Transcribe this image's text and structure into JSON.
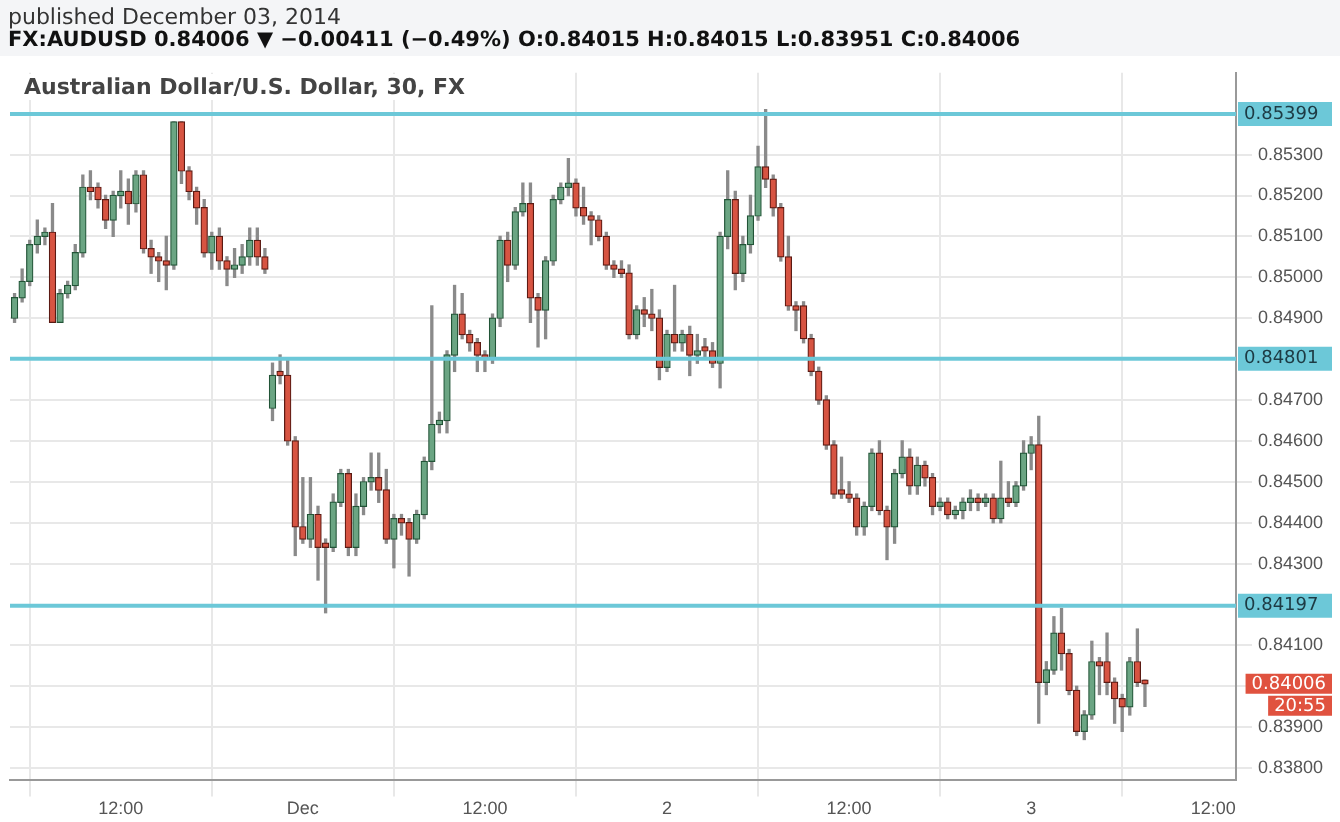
{
  "chart_data": {
    "type": "candlestick",
    "title": "Australian Dollar/U.S. Dollar, 30, FX",
    "subtitle": "FX:AUDUSD 0.84006 ▼ −0.00411 (−0.49%) O:0.84015 H:0.84015 L:0.83951 C:0.84006",
    "annotations": [
      "published December 03, 2014",
      "0.84006",
      "20:55"
    ],
    "x": [
      "2014-11-30T05:00",
      "2014-11-30T05:30",
      "2014-11-30T06:00",
      "2014-11-30T06:30",
      "2014-11-30T07:00",
      "2014-11-30T07:30",
      "2014-11-30T08:00",
      "2014-11-30T08:30",
      "2014-11-30T09:00",
      "2014-11-30T09:30",
      "2014-11-30T10:00",
      "2014-11-30T10:30",
      "2014-11-30T11:00",
      "2014-11-30T11:30",
      "2014-11-30T12:00",
      "2014-11-30T12:30",
      "2014-11-30T13:00",
      "2014-11-30T13:30",
      "2014-11-30T14:00",
      "2014-11-30T14:30",
      "2014-11-30T15:00",
      "2014-11-30T15:30",
      "2014-11-30T16:00",
      "2014-11-30T16:30",
      "2014-11-30T17:00",
      "2014-11-30T17:30",
      "2014-11-30T18:00",
      "2014-11-30T18:30",
      "2014-11-30T19:00",
      "2014-11-30T19:30",
      "2014-11-30T20:00",
      "2014-11-30T20:30",
      "2014-11-30T21:00",
      "2014-11-30T21:30",
      "2014-11-30T22:00",
      "2014-11-30T22:30",
      "2014-11-30T23:00",
      "2014-11-30T23:30",
      "2014-12-01T00:00",
      "2014-12-01T00:30",
      "2014-12-01T01:00",
      "2014-12-01T01:30",
      "2014-12-01T02:00",
      "2014-12-01T02:30",
      "2014-12-01T03:00",
      "2014-12-01T03:30",
      "2014-12-01T04:00",
      "2014-12-01T04:30",
      "2014-12-01T05:00",
      "2014-12-01T05:30",
      "2014-12-01T06:00",
      "2014-12-01T06:30",
      "2014-12-01T07:00",
      "2014-12-01T07:30",
      "2014-12-01T08:00",
      "2014-12-01T08:30",
      "2014-12-01T09:00",
      "2014-12-01T09:30",
      "2014-12-01T10:00",
      "2014-12-01T10:30",
      "2014-12-01T11:00",
      "2014-12-01T11:30",
      "2014-12-01T12:00",
      "2014-12-01T12:30",
      "2014-12-01T13:00",
      "2014-12-01T13:30",
      "2014-12-01T14:00",
      "2014-12-01T14:30",
      "2014-12-01T15:00",
      "2014-12-01T15:30",
      "2014-12-01T16:00",
      "2014-12-01T16:30",
      "2014-12-01T17:00",
      "2014-12-01T17:30",
      "2014-12-01T18:00",
      "2014-12-01T18:30",
      "2014-12-01T19:00",
      "2014-12-01T19:30",
      "2014-12-01T20:00",
      "2014-12-01T20:30",
      "2014-12-01T21:00",
      "2014-12-01T21:30",
      "2014-12-01T22:00",
      "2014-12-01T22:30",
      "2014-12-01T23:00",
      "2014-12-01T23:30",
      "2014-12-02T00:00",
      "2014-12-02T00:30",
      "2014-12-02T01:00",
      "2014-12-02T01:30",
      "2014-12-02T02:00",
      "2014-12-02T02:30",
      "2014-12-02T03:00",
      "2014-12-02T03:30",
      "2014-12-02T04:00",
      "2014-12-02T04:30",
      "2014-12-02T05:00",
      "2014-12-02T05:30",
      "2014-12-02T06:00",
      "2014-12-02T06:30",
      "2014-12-02T07:00",
      "2014-12-02T07:30",
      "2014-12-02T08:00",
      "2014-12-02T08:30",
      "2014-12-02T09:00",
      "2014-12-02T09:30",
      "2014-12-02T10:00",
      "2014-12-02T10:30",
      "2014-12-02T11:00",
      "2014-12-02T11:30",
      "2014-12-02T12:00",
      "2014-12-02T12:30",
      "2014-12-02T13:00",
      "2014-12-02T13:30",
      "2014-12-02T14:00",
      "2014-12-02T14:30",
      "2014-12-02T15:00",
      "2014-12-02T15:30",
      "2014-12-02T16:00",
      "2014-12-02T16:30",
      "2014-12-02T17:00",
      "2014-12-02T17:30",
      "2014-12-02T18:00",
      "2014-12-02T18:30",
      "2014-12-02T19:00",
      "2014-12-02T19:30",
      "2014-12-02T20:00",
      "2014-12-02T20:30",
      "2014-12-02T21:00",
      "2014-12-02T21:30",
      "2014-12-02T22:00",
      "2014-12-02T22:30",
      "2014-12-02T23:00",
      "2014-12-02T23:30",
      "2014-12-03T00:00",
      "2014-12-03T00:30",
      "2014-12-03T01:00",
      "2014-12-03T01:30",
      "2014-12-03T02:00",
      "2014-12-03T02:30",
      "2014-12-03T03:00",
      "2014-12-03T03:30",
      "2014-12-03T04:00",
      "2014-12-03T04:30",
      "2014-12-03T05:00",
      "2014-12-03T05:30",
      "2014-12-03T06:00",
      "2014-12-03T06:30",
      "2014-12-03T07:00",
      "2014-12-03T07:30"
    ],
    "ohlc": [
      [
        0.849,
        0.8496,
        0.8489,
        0.8495
      ],
      [
        0.8495,
        0.8502,
        0.8494,
        0.8499
      ],
      [
        0.8499,
        0.8509,
        0.8498,
        0.8508
      ],
      [
        0.8508,
        0.8514,
        0.8506,
        0.851
      ],
      [
        0.851,
        0.8512,
        0.8508,
        0.8511
      ],
      [
        0.8511,
        0.8518,
        0.8489,
        0.8489
      ],
      [
        0.8489,
        0.8497,
        0.8489,
        0.8496
      ],
      [
        0.8496,
        0.8499,
        0.8495,
        0.8498
      ],
      [
        0.8498,
        0.8508,
        0.8497,
        0.8506
      ],
      [
        0.8506,
        0.8525,
        0.8505,
        0.8522
      ],
      [
        0.8522,
        0.8526,
        0.8519,
        0.8521
      ],
      [
        0.8522,
        0.8523,
        0.8517,
        0.8519
      ],
      [
        0.8519,
        0.852,
        0.8512,
        0.8514
      ],
      [
        0.8514,
        0.8521,
        0.851,
        0.852
      ],
      [
        0.852,
        0.8526,
        0.8517,
        0.8521
      ],
      [
        0.8521,
        0.8524,
        0.8513,
        0.8518
      ],
      [
        0.8518,
        0.8526,
        0.8516,
        0.8525
      ],
      [
        0.8525,
        0.8526,
        0.8506,
        0.8507
      ],
      [
        0.8507,
        0.8509,
        0.8501,
        0.8505
      ],
      [
        0.8505,
        0.8506,
        0.8499,
        0.8504
      ],
      [
        0.8504,
        0.851,
        0.8497,
        0.8503
      ],
      [
        0.8503,
        0.8538,
        0.8502,
        0.8538
      ],
      [
        0.8538,
        0.8538,
        0.8523,
        0.8526
      ],
      [
        0.8526,
        0.8527,
        0.8519,
        0.8521
      ],
      [
        0.8521,
        0.8522,
        0.8513,
        0.8517
      ],
      [
        0.8517,
        0.8519,
        0.8505,
        0.8506
      ],
      [
        0.8506,
        0.8511,
        0.8502,
        0.851
      ],
      [
        0.851,
        0.8512,
        0.8502,
        0.8504
      ],
      [
        0.8504,
        0.8505,
        0.8498,
        0.8502
      ],
      [
        0.8502,
        0.8507,
        0.85,
        0.8503
      ],
      [
        0.8503,
        0.8508,
        0.8501,
        0.8505
      ],
      [
        0.8505,
        0.8512,
        0.8503,
        0.8509
      ],
      [
        0.8509,
        0.8512,
        0.8503,
        0.8505
      ],
      [
        0.8505,
        0.8507,
        0.8501,
        0.8502
      ],
      [
        0.8468,
        0.8479,
        0.8465,
        0.8476
      ],
      [
        0.8477,
        0.8481,
        0.8474,
        0.8476
      ],
      [
        0.8476,
        0.848,
        0.8459,
        0.846
      ],
      [
        0.846,
        0.8461,
        0.8432,
        0.8439
      ],
      [
        0.8439,
        0.8451,
        0.8435,
        0.8436
      ],
      [
        0.8436,
        0.8451,
        0.8434,
        0.8442
      ],
      [
        0.8442,
        0.8444,
        0.8426,
        0.8434
      ],
      [
        0.8435,
        0.8436,
        0.8418,
        0.8434
      ],
      [
        0.8434,
        0.8447,
        0.8433,
        0.8445
      ],
      [
        0.8445,
        0.8453,
        0.8444,
        0.8452
      ],
      [
        0.8452,
        0.8453,
        0.8432,
        0.8434
      ],
      [
        0.8434,
        0.8447,
        0.8432,
        0.8444
      ],
      [
        0.8444,
        0.8451,
        0.8442,
        0.845
      ],
      [
        0.845,
        0.8457,
        0.8448,
        0.8451
      ],
      [
        0.8451,
        0.8457,
        0.8445,
        0.8448
      ],
      [
        0.8448,
        0.8453,
        0.8435,
        0.8436
      ],
      [
        0.8436,
        0.8442,
        0.8429,
        0.8441
      ],
      [
        0.8441,
        0.8442,
        0.8437,
        0.844
      ],
      [
        0.844,
        0.8441,
        0.8427,
        0.8436
      ],
      [
        0.8436,
        0.8443,
        0.8435,
        0.8442
      ],
      [
        0.8442,
        0.8456,
        0.8441,
        0.8455
      ],
      [
        0.8455,
        0.8493,
        0.8453,
        0.8464
      ],
      [
        0.8464,
        0.8467,
        0.8462,
        0.8465
      ],
      [
        0.8465,
        0.8482,
        0.8462,
        0.8481
      ],
      [
        0.8481,
        0.8498,
        0.8477,
        0.8491
      ],
      [
        0.8491,
        0.8496,
        0.8485,
        0.8486
      ],
      [
        0.8486,
        0.8487,
        0.8482,
        0.8484
      ],
      [
        0.8484,
        0.8485,
        0.8477,
        0.8481
      ],
      [
        0.8481,
        0.8482,
        0.8477,
        0.848
      ],
      [
        0.848,
        0.8491,
        0.8479,
        0.849
      ],
      [
        0.849,
        0.851,
        0.8488,
        0.8509
      ],
      [
        0.8509,
        0.8511,
        0.8499,
        0.8503
      ],
      [
        0.8503,
        0.8517,
        0.8502,
        0.8516
      ],
      [
        0.8516,
        0.8523,
        0.8515,
        0.8518
      ],
      [
        0.8518,
        0.8523,
        0.8489,
        0.8495
      ],
      [
        0.8495,
        0.8496,
        0.8483,
        0.8492
      ],
      [
        0.8492,
        0.8505,
        0.8485,
        0.8504
      ],
      [
        0.8504,
        0.852,
        0.8503,
        0.8519
      ],
      [
        0.8519,
        0.8523,
        0.8518,
        0.8522
      ],
      [
        0.8522,
        0.8529,
        0.852,
        0.8523
      ],
      [
        0.8523,
        0.8524,
        0.8515,
        0.8517
      ],
      [
        0.8517,
        0.8522,
        0.8513,
        0.8515
      ],
      [
        0.8515,
        0.8516,
        0.8508,
        0.8514
      ],
      [
        0.8514,
        0.8515,
        0.8509,
        0.851
      ],
      [
        0.851,
        0.8511,
        0.8502,
        0.8503
      ],
      [
        0.8503,
        0.8504,
        0.85,
        0.8502
      ],
      [
        0.8502,
        0.8504,
        0.85,
        0.8501
      ],
      [
        0.8501,
        0.8503,
        0.8485,
        0.8486
      ],
      [
        0.8486,
        0.8493,
        0.8485,
        0.8492
      ],
      [
        0.8492,
        0.8495,
        0.8488,
        0.8491
      ],
      [
        0.8491,
        0.8497,
        0.8487,
        0.849
      ],
      [
        0.849,
        0.8492,
        0.8475,
        0.8478
      ],
      [
        0.8478,
        0.8487,
        0.8477,
        0.8486
      ],
      [
        0.8486,
        0.8498,
        0.8482,
        0.8484
      ],
      [
        0.8484,
        0.8487,
        0.8482,
        0.8486
      ],
      [
        0.8486,
        0.8488,
        0.8476,
        0.8481
      ],
      [
        0.8481,
        0.8486,
        0.8479,
        0.8482
      ],
      [
        0.8483,
        0.8485,
        0.848,
        0.8482
      ],
      [
        0.8482,
        0.8484,
        0.8478,
        0.8479
      ],
      [
        0.8479,
        0.8511,
        0.8473,
        0.851
      ],
      [
        0.851,
        0.8526,
        0.8507,
        0.8519
      ],
      [
        0.8519,
        0.8521,
        0.8497,
        0.8501
      ],
      [
        0.8501,
        0.851,
        0.8499,
        0.8508
      ],
      [
        0.8508,
        0.852,
        0.8506,
        0.8515
      ],
      [
        0.8515,
        0.8532,
        0.8514,
        0.8527
      ],
      [
        0.8527,
        0.8541,
        0.8522,
        0.8524
      ],
      [
        0.8524,
        0.8525,
        0.8515,
        0.8517
      ],
      [
        0.8517,
        0.8518,
        0.8504,
        0.8505
      ],
      [
        0.8505,
        0.851,
        0.8492,
        0.8493
      ],
      [
        0.8493,
        0.8494,
        0.8487,
        0.8492
      ],
      [
        0.8493,
        0.8494,
        0.8484,
        0.8485
      ],
      [
        0.8485,
        0.8486,
        0.8476,
        0.8477
      ],
      [
        0.8477,
        0.8478,
        0.8469,
        0.847
      ],
      [
        0.847,
        0.8471,
        0.8458,
        0.8459
      ],
      [
        0.8459,
        0.846,
        0.8446,
        0.8447
      ],
      [
        0.8448,
        0.8456,
        0.8446,
        0.8447
      ],
      [
        0.8447,
        0.845,
        0.8445,
        0.8446
      ],
      [
        0.8446,
        0.8447,
        0.8437,
        0.8439
      ],
      [
        0.8439,
        0.8445,
        0.8437,
        0.8444
      ],
      [
        0.8444,
        0.8458,
        0.8443,
        0.8457
      ],
      [
        0.8457,
        0.846,
        0.8442,
        0.8443
      ],
      [
        0.8443,
        0.8444,
        0.8431,
        0.8439
      ],
      [
        0.8439,
        0.8453,
        0.8435,
        0.8452
      ],
      [
        0.8452,
        0.846,
        0.8451,
        0.8456
      ],
      [
        0.8456,
        0.8458,
        0.8447,
        0.8449
      ],
      [
        0.8449,
        0.8456,
        0.8447,
        0.8454
      ],
      [
        0.8454,
        0.8455,
        0.8449,
        0.8451
      ],
      [
        0.8451,
        0.8452,
        0.8442,
        0.8444
      ],
      [
        0.8444,
        0.8446,
        0.8443,
        0.8445
      ],
      [
        0.8445,
        0.8446,
        0.8441,
        0.8442
      ],
      [
        0.8442,
        0.8444,
        0.8441,
        0.8443
      ],
      [
        0.8443,
        0.8446,
        0.8441,
        0.8445
      ],
      [
        0.8445,
        0.8448,
        0.8443,
        0.8446
      ],
      [
        0.8446,
        0.8447,
        0.8443,
        0.8445
      ],
      [
        0.8445,
        0.8447,
        0.8444,
        0.8446
      ],
      [
        0.8446,
        0.8447,
        0.844,
        0.8441
      ],
      [
        0.8441,
        0.8455,
        0.844,
        0.8446
      ],
      [
        0.8446,
        0.845,
        0.8444,
        0.8445
      ],
      [
        0.8445,
        0.845,
        0.8444,
        0.8449
      ],
      [
        0.8449,
        0.846,
        0.8448,
        0.8457
      ],
      [
        0.8457,
        0.8461,
        0.8453,
        0.8459
      ],
      [
        0.8459,
        0.8466,
        0.8391,
        0.8401
      ],
      [
        0.8401,
        0.8406,
        0.8398,
        0.8404
      ],
      [
        0.8404,
        0.8417,
        0.8403,
        0.8413
      ],
      [
        0.8413,
        0.8419,
        0.8404,
        0.8408
      ],
      [
        0.8408,
        0.8409,
        0.8398,
        0.8399
      ],
      [
        0.8399,
        0.84,
        0.8388,
        0.8389
      ],
      [
        0.8389,
        0.8394,
        0.8387,
        0.8393
      ],
      [
        0.8393,
        0.8411,
        0.8392,
        0.8406
      ],
      [
        0.8406,
        0.8407,
        0.8398,
        0.8405
      ],
      [
        0.8406,
        0.8413,
        0.8398,
        0.8401
      ],
      [
        0.8401,
        0.8402,
        0.8391,
        0.8397
      ],
      [
        0.8397,
        0.8398,
        0.8389,
        0.8395
      ],
      [
        0.8395,
        0.8407,
        0.8393,
        0.8406
      ],
      [
        0.8406,
        0.8414,
        0.84,
        0.8401
      ],
      [
        0.84015,
        0.84015,
        0.83951,
        0.84006
      ]
    ],
    "xlim": [
      "2014-11-30T04:42",
      "2014-12-03T13:30"
    ],
    "xticks": [
      {
        "value": "2014-11-30T12:00",
        "label": "12:00"
      },
      {
        "value": "2014-12-01T00:00",
        "label": "Dec"
      },
      {
        "value": "2014-12-01T12:00",
        "label": "12:00"
      },
      {
        "value": "2014-12-02T00:00",
        "label": "2"
      },
      {
        "value": "2014-12-02T12:00",
        "label": "12:00"
      },
      {
        "value": "2014-12-03T00:00",
        "label": "3"
      },
      {
        "value": "2014-12-03T12:00",
        "label": "12:00"
      }
    ],
    "ylim": [
      0.8377,
      0.855
    ],
    "yticks": [
      {
        "value": 0.838,
        "label": "0.83800"
      },
      {
        "value": 0.839,
        "label": "0.83900"
      },
      {
        "value": 0.84,
        "label": null
      },
      {
        "value": 0.841,
        "label": "0.84100"
      },
      {
        "value": 0.843,
        "label": "0.84300"
      },
      {
        "value": 0.844,
        "label": "0.84400"
      },
      {
        "value": 0.845,
        "label": "0.84500"
      },
      {
        "value": 0.846,
        "label": "0.84600"
      },
      {
        "value": 0.847,
        "label": "0.84700"
      },
      {
        "value": 0.849,
        "label": "0.84900"
      },
      {
        "value": 0.85,
        "label": "0.85000"
      },
      {
        "value": 0.851,
        "label": "0.85100"
      },
      {
        "value": 0.852,
        "label": "0.85200"
      },
      {
        "value": 0.853,
        "label": "0.85300"
      }
    ],
    "ref_lines": [
      {
        "axis": "y",
        "value": 0.85399,
        "label": "0.85399",
        "color": "#6cc8d8"
      },
      {
        "axis": "y",
        "value": 0.84801,
        "label": "0.84801",
        "color": "#6cc8d8"
      },
      {
        "axis": "y",
        "value": 0.84197,
        "label": "0.84197",
        "color": "#6cc8d8"
      }
    ],
    "grid": true,
    "legend": false
  }
}
